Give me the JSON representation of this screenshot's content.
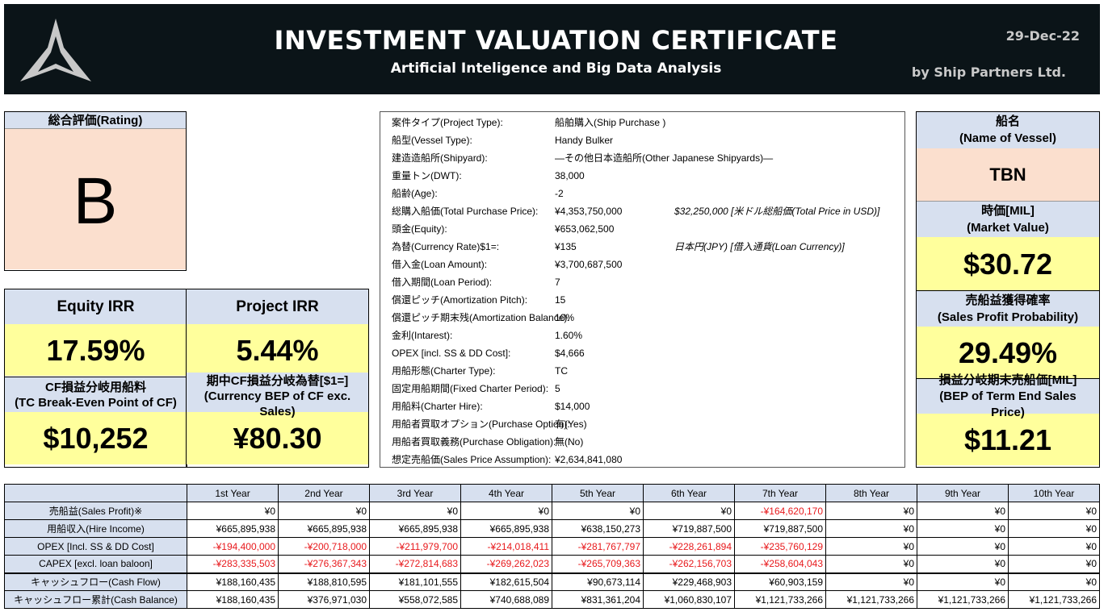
{
  "header": {
    "title": "INVESTMENT VALUATION CERTIFICATE",
    "subtitle": "Artificial Inteligence and Big Data Analysis",
    "date": "29-Dec-22",
    "byline": "by Ship Partners Ltd."
  },
  "rating": {
    "label": "総合評価(Rating)",
    "value": "B"
  },
  "metrics": {
    "equity_irr": {
      "label": "Equity IRR",
      "value": "17.59%"
    },
    "project_irr": {
      "label": "Project IRR",
      "value": "5.44%"
    },
    "tc_bep": {
      "label_line1": "CF損益分岐用船料",
      "label_line2": "(TC Break-Even Point of CF)",
      "value": "$10,252"
    },
    "currency_bep": {
      "label_line1": "期中CF損益分岐為替[$1=]",
      "label_line2": "(Currency BEP of CF exc.",
      "label_line3": "Sales)",
      "value": "¥80.30"
    }
  },
  "details": [
    {
      "label": "案件タイプ(Project Type):",
      "value": "船舶購入(Ship Purchase )",
      "extra": ""
    },
    {
      "label": "船型(Vessel Type):",
      "value": "Handy Bulker",
      "extra": ""
    },
    {
      "label": "建造造船所(Shipyard):",
      "value": "—その他日本造船所(Other Japanese Shipyards)—",
      "extra": ""
    },
    {
      "label": "重量トン(DWT):",
      "value": "38,000",
      "extra": ""
    },
    {
      "label": "船齢(Age):",
      "value": "-2",
      "extra": ""
    },
    {
      "label": "総購入船価(Total Purchase Price):",
      "value": "¥4,353,750,000",
      "extra": "$32,250,000  [米ドル総船価(Total Price in USD)]"
    },
    {
      "label": "頭金(Equity):",
      "value": "¥653,062,500",
      "extra": ""
    },
    {
      "label": "為替(Currency Rate)$1=:",
      "value": "¥135",
      "extra": "日本円(JPY)  [借入通貨(Loan Currency)]"
    },
    {
      "label": "借入金(Loan Amount):",
      "value": "¥3,700,687,500",
      "extra": ""
    },
    {
      "label": "借入期間(Loan Period):",
      "value": "7",
      "extra": ""
    },
    {
      "label": "償還ピッチ(Amortization Pitch):",
      "value": "15",
      "extra": ""
    },
    {
      "label": "償還ピッチ期末残(Amortization Balance):",
      "value": "10%",
      "extra": ""
    },
    {
      "label": "金利(Intarest):",
      "value": "1.60%",
      "extra": ""
    },
    {
      "label": "OPEX [incl. SS & DD Cost]:",
      "value": "$4,666",
      "extra": ""
    },
    {
      "label": "用船形態(Charter Type):",
      "value": "TC",
      "extra": ""
    },
    {
      "label": "固定用船期間(Fixed Charter Period):",
      "value": "5",
      "extra": ""
    },
    {
      "label": "用船料(Charter Hire):",
      "value": "$14,000",
      "extra": ""
    },
    {
      "label": "用船者買取オプション(Purchase Option):",
      "value": "有(Yes)",
      "extra": ""
    },
    {
      "label": "用船者買取義務(Purchase Obligation):",
      "value": "無(No)",
      "extra": ""
    },
    {
      "label": "想定売船価(Sales Price Assumption):",
      "value": "¥2,634,841,080",
      "extra": ""
    }
  ],
  "vessel": {
    "name_label_jp": "船名",
    "name_label_en": "(Name of Vessel)",
    "name_value": "TBN",
    "market_label_jp": "時価[MIL]",
    "market_label_en": "(Market Value)",
    "market_value": "$30.72",
    "sales_label_jp": "売船益獲得確率",
    "sales_label_en": "(Sales Profit Probability)",
    "sales_value": "29.49%",
    "bep_label_jp": "損益分岐期末売船価[MIL]",
    "bep_label_en1": "(BEP of Term End Sales",
    "bep_label_en2": "Price)",
    "bep_value": "$11.21"
  },
  "cashflow": {
    "years": [
      "1st Year",
      "2nd Year",
      "3rd Year",
      "4th Year",
      "5th Year",
      "6th Year",
      "7th Year",
      "8th Year",
      "9th Year",
      "10th Year"
    ],
    "rows": [
      {
        "label": "売船益(Sales Profit)※",
        "values": [
          "¥0",
          "¥0",
          "¥0",
          "¥0",
          "¥0",
          "¥0",
          "-¥164,620,170",
          "¥0",
          "¥0",
          "¥0"
        ]
      },
      {
        "label": "用船収入(Hire Income)",
        "values": [
          "¥665,895,938",
          "¥665,895,938",
          "¥665,895,938",
          "¥665,895,938",
          "¥638,150,273",
          "¥719,887,500",
          "¥719,887,500",
          "¥0",
          "¥0",
          "¥0"
        ]
      },
      {
        "label": "OPEX [Incl. SS & DD Cost]",
        "values": [
          "-¥194,400,000",
          "-¥200,718,000",
          "-¥211,979,700",
          "-¥214,018,411",
          "-¥281,767,797",
          "-¥228,261,894",
          "-¥235,760,129",
          "¥0",
          "¥0",
          "¥0"
        ]
      },
      {
        "label": "CAPEX [excl. loan baloon]",
        "values": [
          "-¥283,335,503",
          "-¥276,367,343",
          "-¥272,814,683",
          "-¥269,262,023",
          "-¥265,709,363",
          "-¥262,156,703",
          "-¥258,604,043",
          "¥0",
          "¥0",
          "¥0"
        ]
      },
      {
        "label": "キャッシュフロー(Cash Flow)",
        "values": [
          "¥188,160,435",
          "¥188,810,595",
          "¥181,101,555",
          "¥182,615,504",
          "¥90,673,114",
          "¥229,468,903",
          "¥60,903,159",
          "¥0",
          "¥0",
          "¥0"
        ]
      },
      {
        "label": "キャッシュフロー累計(Cash Balance)",
        "values": [
          "¥188,160,435",
          "¥376,971,030",
          "¥558,072,585",
          "¥740,688,089",
          "¥831,361,204",
          "¥1,060,830,107",
          "¥1,121,733,266",
          "¥1,121,733,266",
          "¥1,121,733,266",
          "¥1,121,733,266"
        ]
      }
    ]
  },
  "colors": {
    "header_bg": "#0b1418",
    "label_blue": "#d7e0ef",
    "value_yellow": "#ffff9c",
    "value_peach": "#fbdfce",
    "negative_red": "#e8191c"
  }
}
